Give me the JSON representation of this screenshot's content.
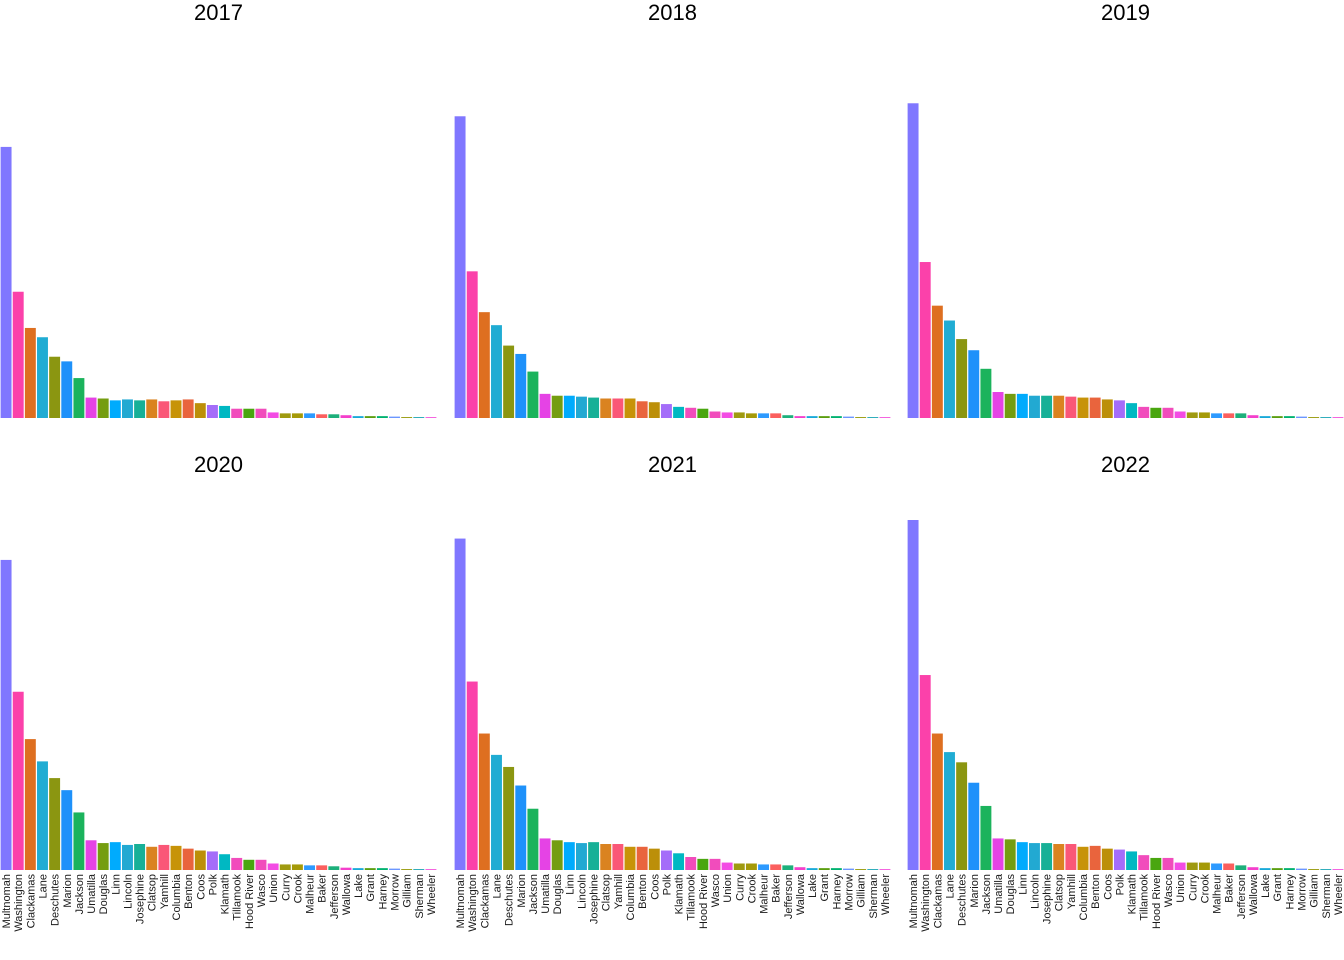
{
  "chart_data": [
    {
      "type": "bar",
      "title": "2017",
      "xlabel": "",
      "ylabel": "",
      "grid": false,
      "legend": "none",
      "categories": [
        "Multnomah",
        "Washington",
        "Clackamas",
        "Lane",
        "Deschutes",
        "Marion",
        "Jackson",
        "Umatilla",
        "Douglas",
        "Linn",
        "Lincoln",
        "Josephine",
        "Clatsop",
        "Yamhill",
        "Columbia",
        "Benton",
        "Coos",
        "Polk",
        "Klamath",
        "Tillamook",
        "Hood River",
        "Wasco",
        "Union",
        "Curry",
        "Crook",
        "Malheur",
        "Baker",
        "Jefferson",
        "Wallowa",
        "Lake",
        "Grant",
        "Harney",
        "Morrow",
        "Gilliam",
        "Sherman",
        "Wheeler"
      ],
      "values": [
        292,
        136,
        97,
        87,
        66,
        61,
        43,
        22,
        21,
        19,
        20,
        19,
        20,
        18,
        19,
        20,
        16,
        14,
        13,
        10,
        10,
        10,
        6,
        5,
        5,
        5,
        4,
        4,
        3,
        2,
        2,
        2,
        1.5,
        1,
        1,
        1
      ]
    },
    {
      "type": "bar",
      "title": "2018",
      "xlabel": "",
      "ylabel": "",
      "grid": false,
      "legend": "none",
      "categories": [
        "Multnomah",
        "Washington",
        "Clackamas",
        "Lane",
        "Deschutes",
        "Marion",
        "Jackson",
        "Umatilla",
        "Douglas",
        "Linn",
        "Lincoln",
        "Josephine",
        "Clatsop",
        "Yamhill",
        "Columbia",
        "Benton",
        "Coos",
        "Polk",
        "Klamath",
        "Tillamook",
        "Hood River",
        "Wasco",
        "Union",
        "Curry",
        "Crook",
        "Malheur",
        "Baker",
        "Jefferson",
        "Wallowa",
        "Lake",
        "Grant",
        "Harney",
        "Morrow",
        "Gilliam",
        "Sherman",
        "Wheeler"
      ],
      "values": [
        325,
        158,
        114,
        100,
        78,
        69,
        50,
        26,
        24,
        24,
        23,
        22,
        21,
        21,
        21,
        18,
        17,
        15,
        12,
        11,
        10,
        7,
        6,
        6,
        5,
        5,
        5,
        3,
        2,
        2,
        2,
        2,
        1.5,
        1,
        1,
        1
      ]
    },
    {
      "type": "bar",
      "title": "2019",
      "xlabel": "",
      "ylabel": "",
      "grid": false,
      "legend": "none",
      "categories": [
        "Multnomah",
        "Washington",
        "Clackamas",
        "Lane",
        "Deschutes",
        "Marion",
        "Jackson",
        "Umatilla",
        "Douglas",
        "Linn",
        "Lincoln",
        "Josephine",
        "Clatsop",
        "Yamhill",
        "Columbia",
        "Benton",
        "Coos",
        "Polk",
        "Klamath",
        "Tillamook",
        "Hood River",
        "Wasco",
        "Union",
        "Curry",
        "Crook",
        "Malheur",
        "Baker",
        "Jefferson",
        "Wallowa",
        "Lake",
        "Grant",
        "Harney",
        "Morrow",
        "Gilliam",
        "Sherman",
        "Wheeler"
      ],
      "values": [
        339,
        168,
        121,
        105,
        85,
        73,
        53,
        28,
        26,
        26,
        24,
        24,
        24,
        23,
        22,
        22,
        20,
        19,
        16,
        12,
        11,
        11,
        7,
        6,
        6,
        5,
        5,
        5,
        3,
        2,
        2,
        2,
        1.5,
        1,
        1,
        1
      ]
    },
    {
      "type": "bar",
      "title": "2020",
      "xlabel": "",
      "ylabel": "",
      "grid": false,
      "legend": "none",
      "categories": [
        "Multnomah",
        "Washington",
        "Clackamas",
        "Lane",
        "Deschutes",
        "Marion",
        "Jackson",
        "Umatilla",
        "Douglas",
        "Linn",
        "Lincoln",
        "Josephine",
        "Clatsop",
        "Yamhill",
        "Columbia",
        "Benton",
        "Coos",
        "Polk",
        "Klamath",
        "Tillamook",
        "Hood River",
        "Wasco",
        "Union",
        "Curry",
        "Crook",
        "Malheur",
        "Baker",
        "Jefferson",
        "Wallowa",
        "Lake",
        "Grant",
        "Harney",
        "Morrow",
        "Gilliam",
        "Sherman",
        "Wheeler"
      ],
      "values": [
        334,
        192,
        141,
        117,
        99,
        86,
        62,
        32,
        29,
        30,
        27,
        28,
        25,
        27,
        26,
        23,
        21,
        20,
        17,
        13,
        11,
        11,
        7,
        6,
        6,
        5,
        5,
        4,
        2.5,
        2,
        2,
        2,
        1.5,
        1,
        1,
        1
      ]
    },
    {
      "type": "bar",
      "title": "2021",
      "xlabel": "",
      "ylabel": "",
      "grid": false,
      "legend": "none",
      "categories": [
        "Multnomah",
        "Washington",
        "Clackamas",
        "Lane",
        "Deschutes",
        "Marion",
        "Jackson",
        "Umatilla",
        "Douglas",
        "Linn",
        "Lincoln",
        "Josephine",
        "Clatsop",
        "Yamhill",
        "Columbia",
        "Benton",
        "Coos",
        "Polk",
        "Klamath",
        "Tillamook",
        "Hood River",
        "Wasco",
        "Union",
        "Curry",
        "Crook",
        "Malheur",
        "Baker",
        "Jefferson",
        "Wallowa",
        "Lake",
        "Grant",
        "Harney",
        "Morrow",
        "Gilliam",
        "Sherman",
        "Wheeler"
      ],
      "values": [
        357,
        203,
        147,
        124,
        111,
        91,
        66,
        34,
        32,
        30,
        29,
        30,
        28,
        28,
        25,
        25,
        23,
        21,
        18,
        14,
        12,
        12,
        8,
        7,
        7,
        6,
        6,
        5,
        3,
        2,
        2,
        2,
        1.5,
        1,
        1,
        1
      ]
    },
    {
      "type": "bar",
      "title": "2022",
      "xlabel": "",
      "ylabel": "",
      "grid": false,
      "legend": "none",
      "categories": [
        "Multnomah",
        "Washington",
        "Clackamas",
        "Lane",
        "Deschutes",
        "Marion",
        "Jackson",
        "Umatilla",
        "Douglas",
        "Linn",
        "Lincoln",
        "Josephine",
        "Clatsop",
        "Yamhill",
        "Columbia",
        "Benton",
        "Coos",
        "Polk",
        "Klamath",
        "Tillamook",
        "Hood River",
        "Wasco",
        "Union",
        "Curry",
        "Crook",
        "Malheur",
        "Baker",
        "Jefferson",
        "Wallowa",
        "Lake",
        "Grant",
        "Harney",
        "Morrow",
        "Gilliam",
        "Sherman",
        "Wheeler"
      ],
      "values": [
        377,
        210,
        147,
        127,
        116,
        94,
        69,
        34,
        33,
        30,
        29,
        29,
        28,
        28,
        25,
        26,
        23,
        22,
        20,
        16,
        13,
        13,
        8,
        8,
        8,
        7,
        7,
        5,
        3,
        2,
        2,
        2,
        1.5,
        1,
        1,
        1
      ]
    }
  ],
  "palette": [
    "#8077FF",
    "#FB41AA",
    "#DE6F20",
    "#20ACD3",
    "#8B9611",
    "#1E91FA",
    "#1BB35C",
    "#E543E5",
    "#749D10",
    "#00ABFD",
    "#22A9D2",
    "#17B097",
    "#DA8320",
    "#FA5777",
    "#C79308",
    "#E9643D",
    "#BC8F09",
    "#A46DF9",
    "#00B8C2",
    "#F14CBC",
    "#49A60F",
    "#F14CBC",
    "#F34BE4",
    "#9F9A10",
    "#A59A08",
    "#2D9AFF",
    "#FB5F5E",
    "#1DB07B",
    "#F43FCB",
    "#18A9D8",
    "#5B9E10",
    "#00B26F",
    "#6C97FF",
    "#9A9C0E",
    "#23A9B7",
    "#F35ADD"
  ]
}
